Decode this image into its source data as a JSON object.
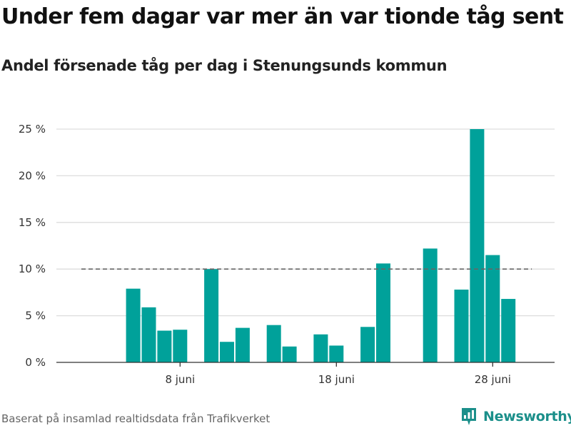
{
  "title": "Under fem dagar var mer än var tionde tåg sent",
  "subtitle": "Andel försenade tåg per dag i Stenungsunds kommun",
  "source": "Baserat på insamlad realtidsdata från Trafikverket",
  "brand": "Newsworthy",
  "colors": {
    "bar": "#00a19a",
    "grid": "#dddddd",
    "axis": "#333333",
    "reference": "#666666",
    "brand": "#1b8f8a"
  },
  "chart_data": {
    "type": "bar",
    "x_unit": "day of June",
    "x": [
      1,
      2,
      3,
      4,
      5,
      6,
      7,
      8,
      9,
      10,
      11,
      12,
      13,
      14,
      15,
      16,
      17,
      18,
      19,
      20,
      21,
      22,
      23,
      24,
      25,
      26,
      27,
      28,
      29,
      30
    ],
    "values": [
      null,
      null,
      null,
      null,
      7.9,
      5.9,
      3.4,
      3.5,
      null,
      10.0,
      2.2,
      3.7,
      null,
      4.0,
      1.7,
      null,
      3.0,
      1.8,
      null,
      3.8,
      10.6,
      null,
      null,
      12.2,
      null,
      7.8,
      25.0,
      11.5,
      6.8,
      null
    ],
    "ylim": [
      0,
      25
    ],
    "yticks": [
      0,
      5,
      10,
      15,
      20,
      25
    ],
    "ytick_labels": [
      "0 %",
      "5 %",
      "10 %",
      "15 %",
      "20 %",
      "25 %"
    ],
    "xticks": [
      8,
      18,
      28
    ],
    "xtick_labels": [
      "8 juni",
      "18 juni",
      "28 juni"
    ],
    "reference_line": 10,
    "grid": true
  }
}
